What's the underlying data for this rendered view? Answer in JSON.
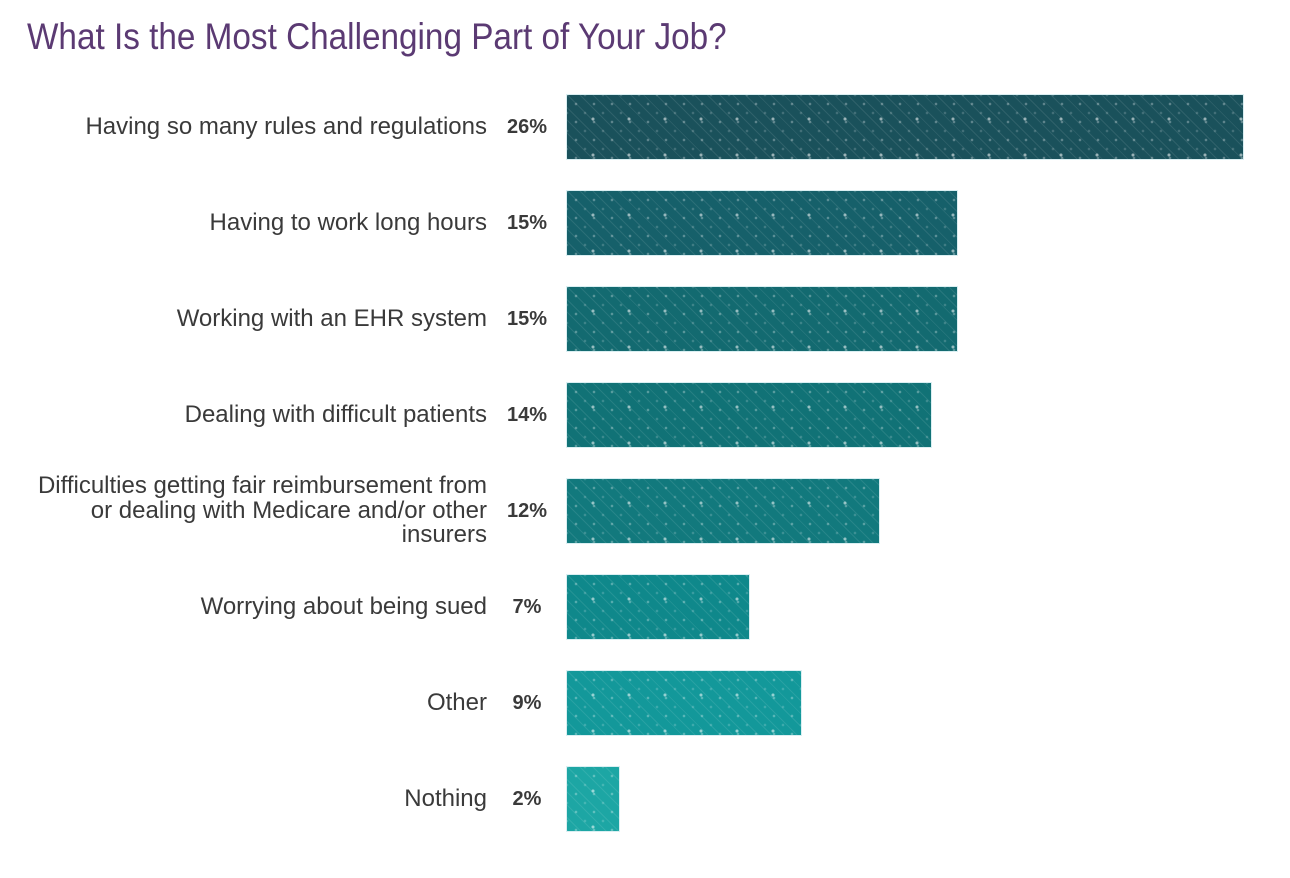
{
  "title": {
    "text": "What Is the Most Challenging Part of Your Job?",
    "color": "#5b3a73"
  },
  "chart_data": {
    "type": "bar",
    "orientation": "horizontal",
    "title": "What Is the Most Challenging Part of Your Job?",
    "categories": [
      "Having so many rules and regulations",
      "Having to work long hours",
      "Working with an EHR system",
      "Dealing with difficult patients",
      "Difficulties getting fair reimbursement from or dealing with Medicare and/or other insurers",
      "Worrying about being sued",
      "Other",
      "Nothing"
    ],
    "values": [
      26,
      15,
      15,
      14,
      12,
      7,
      9,
      2
    ],
    "value_labels": [
      "26%",
      "15%",
      "15%",
      "14%",
      "12%",
      "7%",
      "9%",
      "2%"
    ],
    "xlim": [
      0,
      26
    ],
    "bar_colors": [
      "#1a515b",
      "#16606a",
      "#136a70",
      "#117276",
      "#12797d",
      "#0f888b",
      "#13989a",
      "#1da6a4"
    ],
    "texture": "diagonal-dotted-lines",
    "bar_outline_color": "#cde9ed",
    "label_color": "#3a3a3a",
    "grid": false,
    "legend": "none"
  }
}
